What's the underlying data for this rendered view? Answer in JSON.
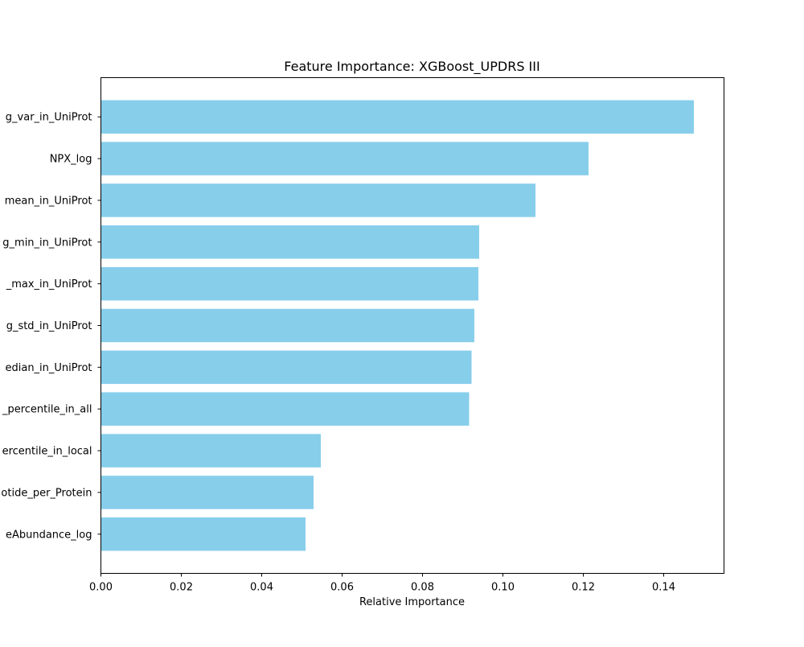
{
  "chart_data": {
    "type": "bar",
    "orientation": "horizontal",
    "title": "Feature Importance: XGBoost_UPDRS III",
    "xlabel": "Relative Importance",
    "ylabel": "",
    "categories": [
      "g_var_in_UniProt",
      "NPX_log",
      "mean_in_UniProt",
      "g_min_in_UniProt",
      "_max_in_UniProt",
      "g_std_in_UniProt",
      "edian_in_UniProt",
      "_percentile_in_all",
      "ercentile_in_local",
      "otide_per_Protein",
      "eAbundance_log"
    ],
    "values": [
      0.1475,
      0.1213,
      0.1081,
      0.0941,
      0.0939,
      0.0929,
      0.0922,
      0.0916,
      0.0547,
      0.0529,
      0.0509
    ],
    "xlim": [
      0.0,
      0.155
    ],
    "xticks": [
      "0.00",
      "0.02",
      "0.04",
      "0.06",
      "0.08",
      "0.10",
      "0.12",
      "0.14"
    ],
    "bar_color": "#87ceeb",
    "grid": false,
    "legend": "none"
  }
}
